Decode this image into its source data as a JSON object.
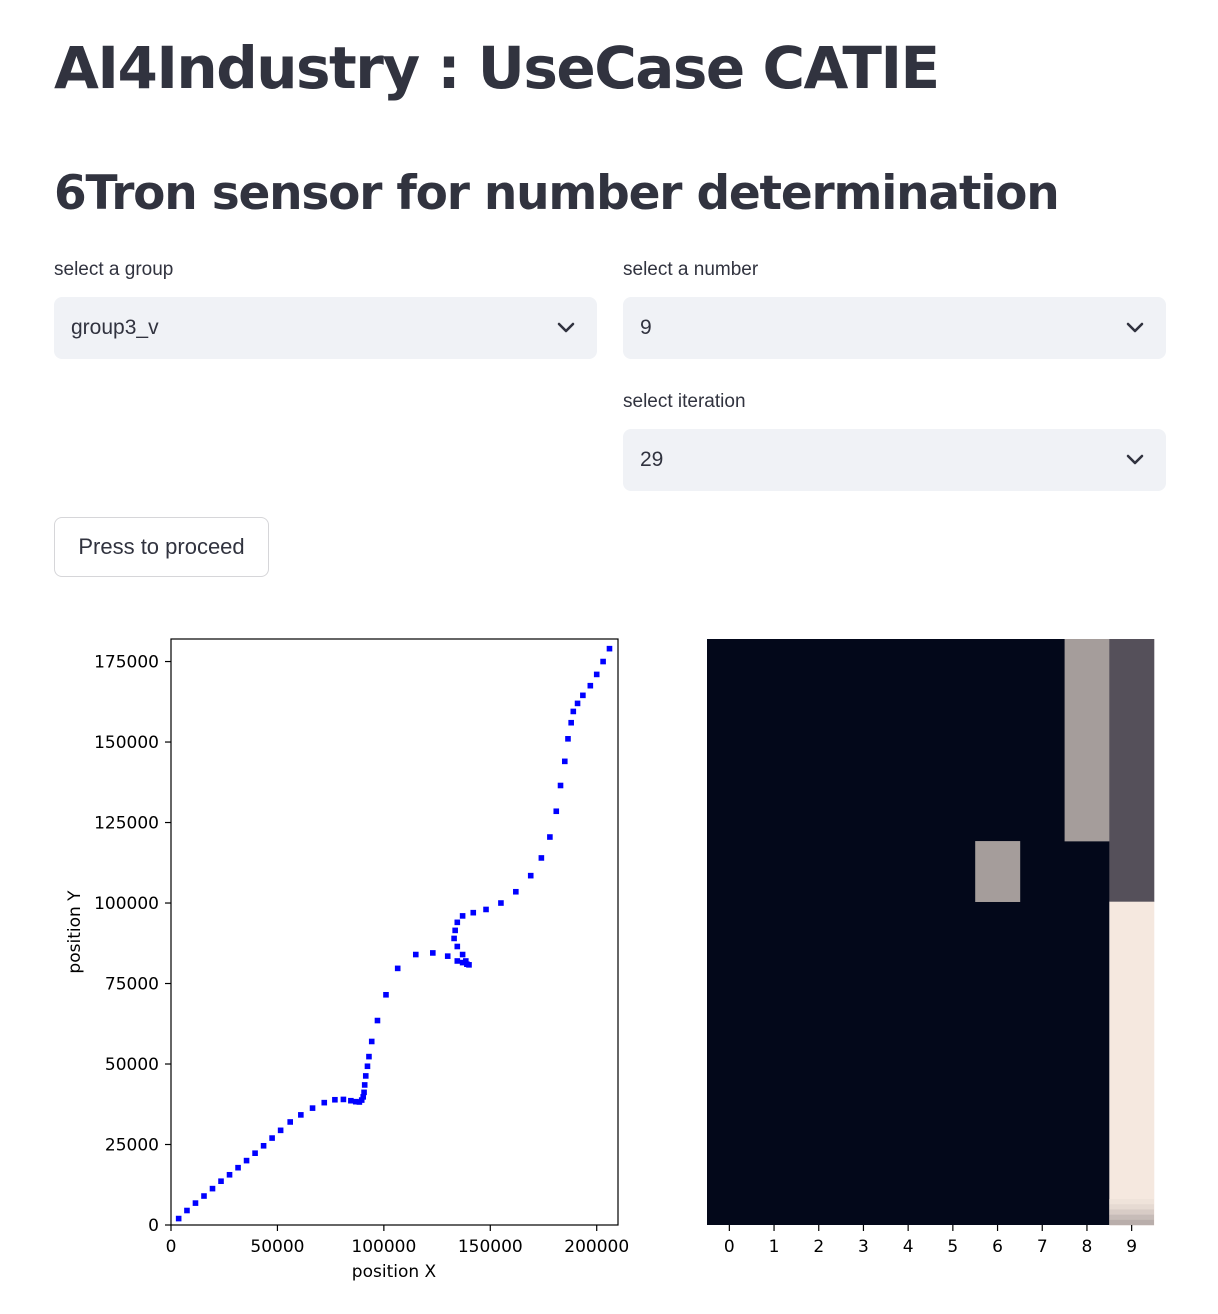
{
  "page": {
    "title": "AI4Industry : UseCase CATIE",
    "subtitle": "6Tron sensor for number determination"
  },
  "controls": {
    "group": {
      "label": "select a group",
      "value": "group3_v"
    },
    "number": {
      "label": "select a number",
      "value": "9"
    },
    "iteration": {
      "label": "select iteration",
      "value": "29"
    },
    "proceed_label": "Press to proceed"
  },
  "colors": {
    "marker": "#0000ff",
    "heatmap_dark": "#03081a",
    "heatmap_gray": "#a59d9b",
    "heatmap_slate": "#55505a",
    "heatmap_light": "#f5e8df"
  },
  "chart_data": [
    {
      "type": "scatter",
      "xlabel": "position X",
      "ylabel": "position Y",
      "xlim": [
        0,
        210000
      ],
      "ylim": [
        0,
        182000
      ],
      "xticks": [
        "0",
        "50000",
        "100000",
        "150000",
        "200000"
      ],
      "yticks": [
        "0",
        "25000",
        "50000",
        "75000",
        "100000",
        "125000",
        "150000",
        "175000"
      ],
      "grid": false,
      "points": [
        [
          3600,
          2000
        ],
        [
          7500,
          4500
        ],
        [
          11500,
          6800
        ],
        [
          15500,
          9000
        ],
        [
          19500,
          11300
        ],
        [
          23500,
          13600
        ],
        [
          27500,
          15600
        ],
        [
          31500,
          17800
        ],
        [
          35500,
          20000
        ],
        [
          39500,
          22300
        ],
        [
          43500,
          24600
        ],
        [
          47500,
          27000
        ],
        [
          51500,
          29400
        ],
        [
          56000,
          32000
        ],
        [
          61000,
          34200
        ],
        [
          66500,
          36300
        ],
        [
          72000,
          38000
        ],
        [
          77000,
          38900
        ],
        [
          81000,
          39000
        ],
        [
          84500,
          38600
        ],
        [
          86800,
          38300
        ],
        [
          88500,
          38200
        ],
        [
          89600,
          38800
        ],
        [
          90300,
          39800
        ],
        [
          90700,
          41200
        ],
        [
          91000,
          43500
        ],
        [
          91500,
          46300
        ],
        [
          92300,
          49300
        ],
        [
          93000,
          52300
        ],
        [
          94300,
          57000
        ],
        [
          97000,
          63500
        ],
        [
          101000,
          71500
        ],
        [
          106500,
          79700
        ],
        [
          115000,
          84000
        ],
        [
          123000,
          84500
        ],
        [
          130000,
          83500
        ],
        [
          134500,
          82000
        ],
        [
          137000,
          81500
        ],
        [
          139000,
          81000
        ],
        [
          140000,
          80800
        ],
        [
          138500,
          82000
        ],
        [
          137000,
          84000
        ],
        [
          134500,
          86500
        ],
        [
          133000,
          89000
        ],
        [
          133500,
          91500
        ],
        [
          134500,
          94000
        ],
        [
          137000,
          96000
        ],
        [
          142000,
          97000
        ],
        [
          148000,
          98000
        ],
        [
          155000,
          100000
        ],
        [
          162000,
          103500
        ],
        [
          169000,
          108500
        ],
        [
          174000,
          114000
        ],
        [
          178000,
          120500
        ],
        [
          181000,
          128500
        ],
        [
          183000,
          136500
        ],
        [
          185000,
          144000
        ],
        [
          186500,
          151000
        ],
        [
          188000,
          156000
        ],
        [
          189000,
          159500
        ],
        [
          191000,
          162000
        ],
        [
          193500,
          164500
        ],
        [
          197000,
          167500
        ],
        [
          200000,
          171000
        ],
        [
          203000,
          175000
        ],
        [
          206000,
          179000
        ]
      ]
    },
    {
      "type": "heatmap",
      "xticks": [
        "0",
        "1",
        "2",
        "3",
        "4",
        "5",
        "6",
        "7",
        "8",
        "9"
      ],
      "cols": 10,
      "rows": 29,
      "cells": [
        {
          "col": 8,
          "row_start": 0,
          "row_end": 10,
          "color": "gray"
        },
        {
          "col": 9,
          "row_start": 0,
          "row_end": 13,
          "color": "slate"
        },
        {
          "col": 6,
          "row_start": 10,
          "row_end": 13,
          "color": "gray"
        },
        {
          "col": 9,
          "row_start": 13,
          "row_end": 29,
          "color": "light"
        }
      ]
    }
  ]
}
